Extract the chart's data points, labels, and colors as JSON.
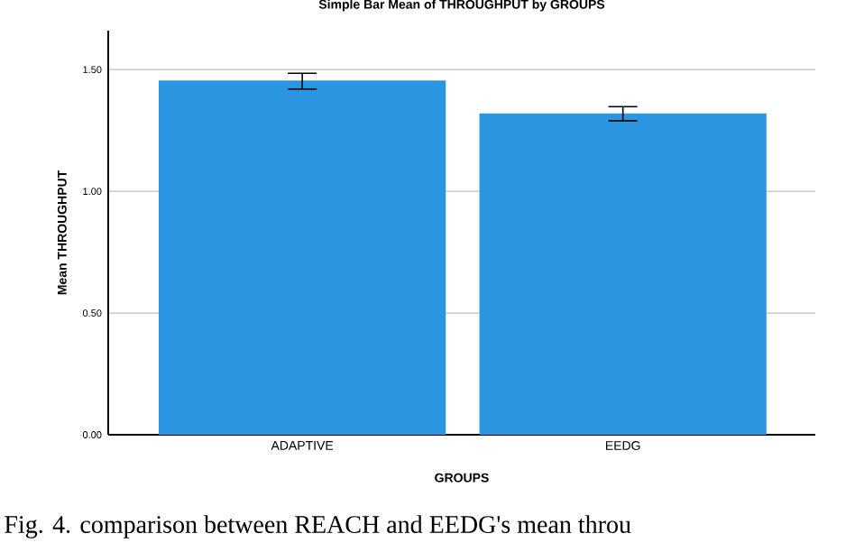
{
  "chart_data": {
    "type": "bar",
    "title": "Simple Bar Mean of THROUGHPUT by GROUPS",
    "xlabel": "GROUPS",
    "ylabel": "Mean THROUGHPUT",
    "categories": [
      "ADAPTIVE",
      "EEDG"
    ],
    "values": [
      1.455,
      1.32
    ],
    "errors": [
      [
        1.42,
        1.485
      ],
      [
        1.29,
        1.348
      ]
    ],
    "color": "#2a96e1",
    "ylim": [
      0,
      1.66
    ],
    "yticks": [
      {
        "value": 0,
        "label": "0.00"
      },
      {
        "value": 0.5,
        "label": "0.50"
      },
      {
        "value": 1,
        "label": "1.00"
      },
      {
        "value": 1.5,
        "label": "1.50"
      }
    ],
    "grid": "y",
    "annotations": [
      "Fig. 4. comparison between REACH and EEDG's mean throu"
    ]
  }
}
